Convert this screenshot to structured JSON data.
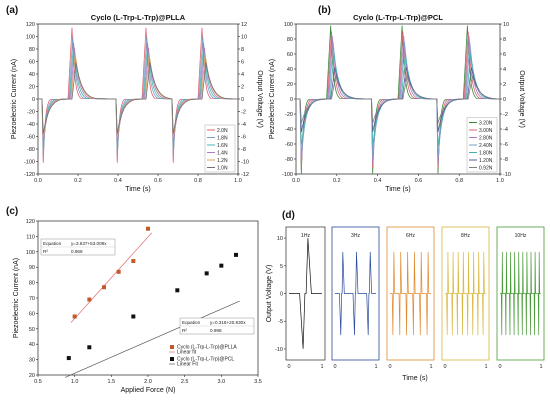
{
  "figure": {
    "panel_a_label": "(a)",
    "panel_b_label": "(b)",
    "panel_c_label": "(c)",
    "panel_d_label": "(d)"
  },
  "chart_data": [
    {
      "id": "a",
      "type": "line",
      "title": "Cyclo (L-Trp-L-Trp)@PLLA",
      "xlabel": "Time (s)",
      "ylabel": "Piezoelectric Current (nA)",
      "y2label": "Output Voltage (V)",
      "xlim": [
        0.0,
        1.0
      ],
      "ylim": [
        -120,
        120
      ],
      "y2lim": [
        -12,
        12
      ],
      "xticks": [
        "0.0",
        "0.2",
        "0.4",
        "0.6",
        "0.8",
        "1.0"
      ],
      "yticks": [
        "-120",
        "-100",
        "-80",
        "-60",
        "-40",
        "-20",
        "0",
        "20",
        "40",
        "60",
        "80",
        "100",
        "120"
      ],
      "y2ticks": [
        "-12",
        "-10",
        "-8",
        "-6",
        "-4",
        "-2",
        "0",
        "2",
        "4",
        "6",
        "8",
        "10",
        "12"
      ],
      "legend_position": "bottom-right",
      "cycle_starts": [
        0.02,
        0.39,
        0.67
      ],
      "series": [
        {
          "name": "2.0N",
          "color": "#e06070",
          "peak": 114,
          "trough": -102
        },
        {
          "name": "1.8N",
          "color": "#7aa0c8",
          "peak": 100,
          "trough": -90
        },
        {
          "name": "1.6N",
          "color": "#40b8b0",
          "peak": 90,
          "trough": -80
        },
        {
          "name": "1.4N",
          "color": "#b07cc0",
          "peak": 82,
          "trough": -72
        },
        {
          "name": "1.2N",
          "color": "#e0a060",
          "peak": 72,
          "trough": -62
        },
        {
          "name": "1.0N",
          "color": "#707070",
          "peak": 58,
          "trough": -55
        }
      ]
    },
    {
      "id": "b",
      "type": "line",
      "title": "Cyclo (L-Trp-L-Trp)@PCL",
      "xlabel": "Time (s)",
      "ylabel": "Piezoelectric Current (nA)",
      "y2label": "Output Voltage (V)",
      "xlim": [
        0.0,
        1.0
      ],
      "ylim": [
        -100,
        100
      ],
      "y2lim": [
        -10,
        10
      ],
      "xticks": [
        "0.0",
        "0.2",
        "0.4",
        "0.6",
        "0.8",
        "1.0"
      ],
      "yticks": [
        "-100",
        "-80",
        "-60",
        "-40",
        "-20",
        "0",
        "20",
        "40",
        "60",
        "80",
        "100"
      ],
      "y2ticks": [
        "-10",
        "-8",
        "-6",
        "-4",
        "-2",
        "0",
        "2",
        "4",
        "6",
        "8",
        "10"
      ],
      "legend_position": "bottom-right",
      "cycle_starts": [
        0.02,
        0.37,
        0.69
      ],
      "series": [
        {
          "name": "3.20N",
          "color": "#3a8a3a",
          "peak": 98,
          "trough": -100
        },
        {
          "name": "3.00N",
          "color": "#e06070",
          "peak": 90,
          "trough": -92
        },
        {
          "name": "2.80N",
          "color": "#b07cc0",
          "peak": 84,
          "trough": -86
        },
        {
          "name": "2.40N",
          "color": "#7aa0c8",
          "peak": 76,
          "trough": -78
        },
        {
          "name": "1.80N",
          "color": "#40b8b0",
          "peak": 60,
          "trough": -62
        },
        {
          "name": "1.20N",
          "color": "#5a5a9a",
          "peak": 42,
          "trough": -44
        },
        {
          "name": "0.92N",
          "color": "#808080",
          "peak": 30,
          "trough": -32
        }
      ]
    },
    {
      "id": "c",
      "type": "scatter",
      "xlabel": "Applied Force (N)",
      "ylabel": "Piezoelectric Current (nA)",
      "xlim": [
        0.5,
        3.5
      ],
      "ylim": [
        20,
        120
      ],
      "xticks": [
        "0.5",
        "1.0",
        "1.5",
        "2.0",
        "2.5",
        "3.0",
        "3.5"
      ],
      "yticks": [
        "20",
        "30",
        "40",
        "50",
        "60",
        "70",
        "80",
        "90",
        "100",
        "110",
        "120"
      ],
      "legend_position": "bottom-left",
      "series": [
        {
          "name": "Cyclo (L-Trp-L-Trp)@PLLA",
          "fit_name": "Linear fit",
          "color": "#c05a2a",
          "fit_color": "#e07070",
          "x": [
            1.0,
            1.2,
            1.4,
            1.6,
            1.8,
            2.0
          ],
          "y": [
            58,
            69,
            77,
            87,
            94,
            115
          ],
          "fit": {
            "slope": 53.008,
            "intercept": 3.637
          },
          "equation_label": "Equation",
          "equation": "y=3.637+53.008x",
          "r2_label": "R²",
          "r2": "0.968"
        },
        {
          "name": "Cyclo (L-Trp-L-Trp)@PCL",
          "fit_name": "Linear Fit",
          "color": "#111111",
          "fit_color": "#555555",
          "x": [
            0.92,
            1.2,
            1.8,
            2.4,
            2.8,
            3.0,
            3.2
          ],
          "y": [
            31,
            38,
            58,
            75,
            86,
            91,
            98
          ],
          "fit": {
            "slope": 20.83,
            "intercept": 0.316
          },
          "equation_label": "Equation",
          "equation": "y=0.316+20.830x",
          "r2_label": "R²",
          "r2": "0.998"
        }
      ]
    },
    {
      "id": "d",
      "type": "line",
      "xlabel": "Time (s)",
      "ylabel": "Output Voltage (V)",
      "ylim": [
        -12,
        12
      ],
      "yticks": [
        "-10",
        "-5",
        "0",
        "5",
        "10"
      ],
      "xticks": [
        "0",
        "1"
      ],
      "subplots": [
        {
          "label": "1Hz",
          "color": "#111111",
          "frame": "#444444",
          "pulses": 1,
          "amp": 10
        },
        {
          "label": "3Hz",
          "color": "#2a4a9a",
          "frame": "#2a4a9a",
          "pulses": 3,
          "amp": 7.5
        },
        {
          "label": "6Hz",
          "color": "#e08a30",
          "frame": "#e08a30",
          "pulses": 6,
          "amp": 7.5
        },
        {
          "label": "8Hz",
          "color": "#d8b840",
          "frame": "#d8b840",
          "pulses": 8,
          "amp": 7.5
        },
        {
          "label": "10Hz",
          "color": "#4a9a3a",
          "frame": "#4a9a3a",
          "pulses": 10,
          "amp": 7.5
        }
      ]
    }
  ]
}
